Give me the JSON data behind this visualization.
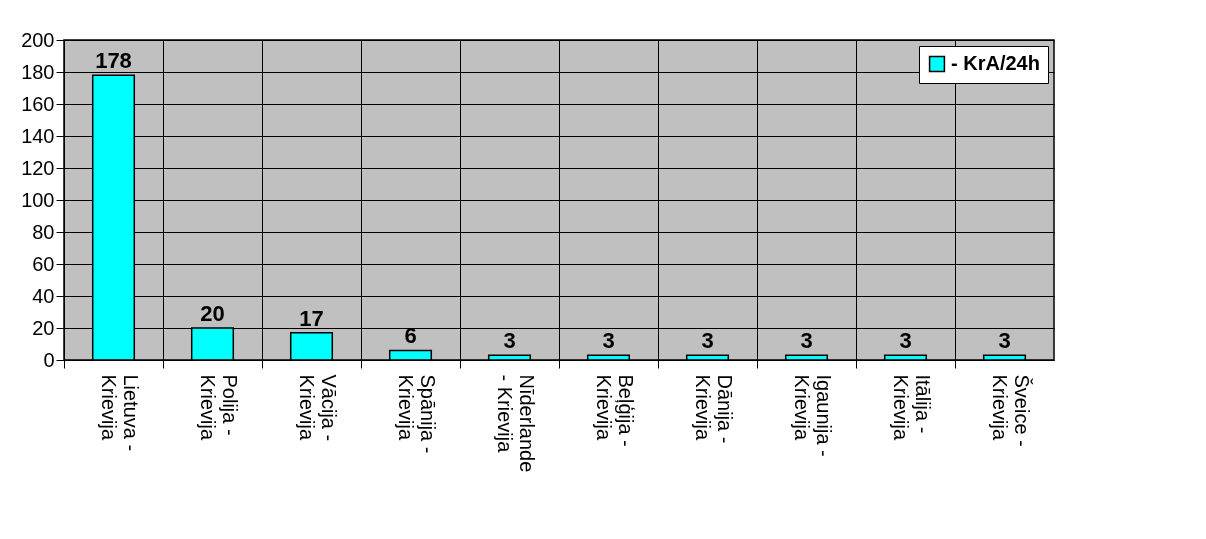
{
  "chart_data": {
    "type": "bar",
    "categories": [
      "Lietuva - Krievija",
      "Polija - Krievija",
      "Vācija - Krievija",
      "Spānija - Krievija",
      "Nīderlande - Krievija",
      "Beļģija - Krievija",
      "Dānija - Krievija",
      "Igaunija - Krievija",
      "Itālija - Krievija",
      "Šveice - Krievija"
    ],
    "series": [
      {
        "name": "- KrA/24h",
        "color": "#00ffff",
        "values": [
          178,
          20,
          17,
          6,
          3,
          3,
          3,
          3,
          3,
          3
        ]
      }
    ],
    "ylim": [
      0,
      200
    ],
    "yticks": [
      0,
      20,
      40,
      60,
      80,
      100,
      120,
      140,
      160,
      180,
      200
    ],
    "grid": true,
    "legend": "top right",
    "data_labels": true
  }
}
